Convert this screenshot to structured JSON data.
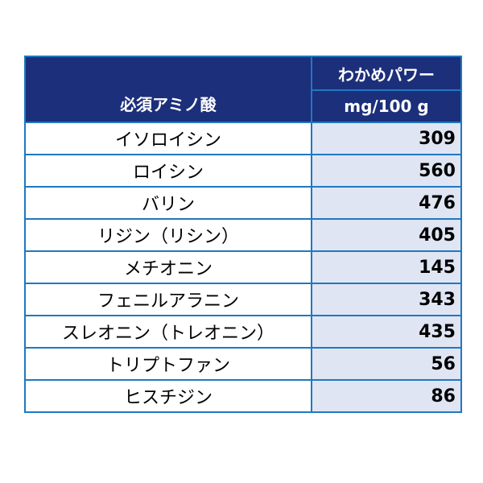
{
  "chart_data": {
    "type": "table",
    "row_header": "必須アミノ酸",
    "column_header": "わかめパワー",
    "unit": "mg/100 g",
    "rows": [
      {
        "name": "イソロイシン",
        "value": 309
      },
      {
        "name": "ロイシン",
        "value": 560
      },
      {
        "name": "バリン",
        "value": 476
      },
      {
        "name": "リジン（リシン）",
        "value": 405
      },
      {
        "name": "メチオニン",
        "value": 145
      },
      {
        "name": "フェニルアラニン",
        "value": 343
      },
      {
        "name": "スレオニン（トレオニン）",
        "value": 435
      },
      {
        "name": "トリプトファン",
        "value": 56
      },
      {
        "name": "ヒスチジン",
        "value": 86
      }
    ]
  },
  "colors": {
    "header_bg": "#1c2f7a",
    "value_bg": "#dfe5f3",
    "border": "#1f78c1"
  }
}
